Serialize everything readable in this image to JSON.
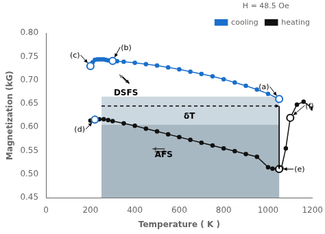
{
  "chart_data": {
    "type": "line",
    "xlabel": "Temperature ( K )",
    "ylabel": "Magnetization (kG)",
    "xlim": [
      0,
      1200
    ],
    "ylim": [
      0.45,
      0.8
    ],
    "xticks": [
      0,
      200,
      400,
      600,
      800,
      1000,
      1200
    ],
    "yticks": [
      0.45,
      {
        "value": 0.5,
        "label": "0.50"
      },
      0.55,
      {
        "value": 0.6,
        "label": "0.60"
      },
      0.65,
      {
        "value": 0.7,
        "label": "0.70"
      },
      0.75,
      {
        "value": 0.8,
        "label": "0.80"
      }
    ],
    "grid": false,
    "legend": "upper right",
    "legend_title": "H = 48.5 Oe",
    "series": [
      {
        "name": "cooling",
        "color": "#1a6fcc",
        "marker": "circle",
        "x": [
          200,
          210,
          220,
          230,
          240,
          250,
          260,
          270,
          280,
          290,
          300,
          320,
          350,
          400,
          450,
          500,
          550,
          600,
          650,
          700,
          750,
          800,
          850,
          900,
          950,
          1000,
          1050
        ],
        "values": [
          0.73,
          0.738,
          0.743,
          0.744,
          0.744,
          0.744,
          0.744,
          0.743,
          0.742,
          0.742,
          0.741,
          0.74,
          0.739,
          0.737,
          0.734,
          0.731,
          0.727,
          0.723,
          0.718,
          0.713,
          0.708,
          0.702,
          0.695,
          0.688,
          0.68,
          0.671,
          0.66
        ]
      },
      {
        "name": "heating",
        "color": "#111111",
        "marker": "circle",
        "x": [
          200,
          220,
          240,
          260,
          280,
          300,
          350,
          400,
          450,
          500,
          550,
          600,
          650,
          700,
          750,
          800,
          850,
          900,
          950,
          1000,
          1020,
          1040,
          1060,
          1080,
          1100,
          1130,
          1160,
          1200
        ],
        "values": [
          0.614,
          0.616,
          0.617,
          0.617,
          0.615,
          0.613,
          0.608,
          0.603,
          0.597,
          0.591,
          0.585,
          0.579,
          0.573,
          0.567,
          0.561,
          0.555,
          0.549,
          0.543,
          0.537,
          0.515,
          0.512,
          0.511,
          0.513,
          0.555,
          0.62,
          0.648,
          0.654,
          0.64
        ]
      }
    ],
    "regions": [
      {
        "x": [
          250,
          1050
        ],
        "y": [
          0.45,
          0.665
        ],
        "color": "#ccd8e0"
      },
      {
        "x": [
          250,
          1050
        ],
        "y": [
          0.45,
          0.605
        ],
        "color": "#a8b8c2"
      }
    ],
    "points": [
      {
        "label": "(a)",
        "x": 1050,
        "y": 0.66,
        "color": "#1a6fcc"
      },
      {
        "label": "(b)",
        "x": 300,
        "y": 0.741,
        "color": "#1a6fcc"
      },
      {
        "label": "(c)",
        "x": 200,
        "y": 0.73,
        "color": "#1a6fcc"
      },
      {
        "label": "(d)",
        "x": 220,
        "y": 0.616,
        "color": "#1a6fcc"
      },
      {
        "label": "(e)",
        "x": 1050,
        "y": 0.511,
        "color": "#111111"
      },
      {
        "label": "(f)",
        "x": 1100,
        "y": 0.62,
        "color": "#111111"
      }
    ],
    "arrows": [
      {
        "from": [
          250,
          0.645
        ],
        "to": [
          1050,
          0.645
        ],
        "color": "black",
        "line_style": "dashed"
      },
      {
        "from": [
          1050,
          0.645
        ],
        "to": [
          1050,
          0.511
        ],
        "color": "black",
        "line_style": "solid"
      },
      {
        "from": [
          360,
          0.698
        ],
        "to": [
          330,
          0.712
        ],
        "color": "gray",
        "line_style": "solid"
      },
      {
        "from": [
          345,
          0.707
        ],
        "to": [
          375,
          0.693
        ],
        "color": "black",
        "line_style": "solid"
      },
      {
        "from": [
          535,
          0.554
        ],
        "to": [
          480,
          0.554
        ],
        "color": "#444444",
        "line_style": "solid"
      },
      {
        "from": [
          490,
          0.548
        ],
        "to": [
          545,
          0.548
        ],
        "color": "#444444",
        "line_style": "solid"
      }
    ],
    "annotations": [
      {
        "text": "DSFS",
        "x": 305,
        "y": 0.667
      },
      {
        "text": "δT",
        "x": 620,
        "y": 0.618
      },
      {
        "text": "AFS",
        "x": 490,
        "y": 0.536
      }
    ]
  }
}
